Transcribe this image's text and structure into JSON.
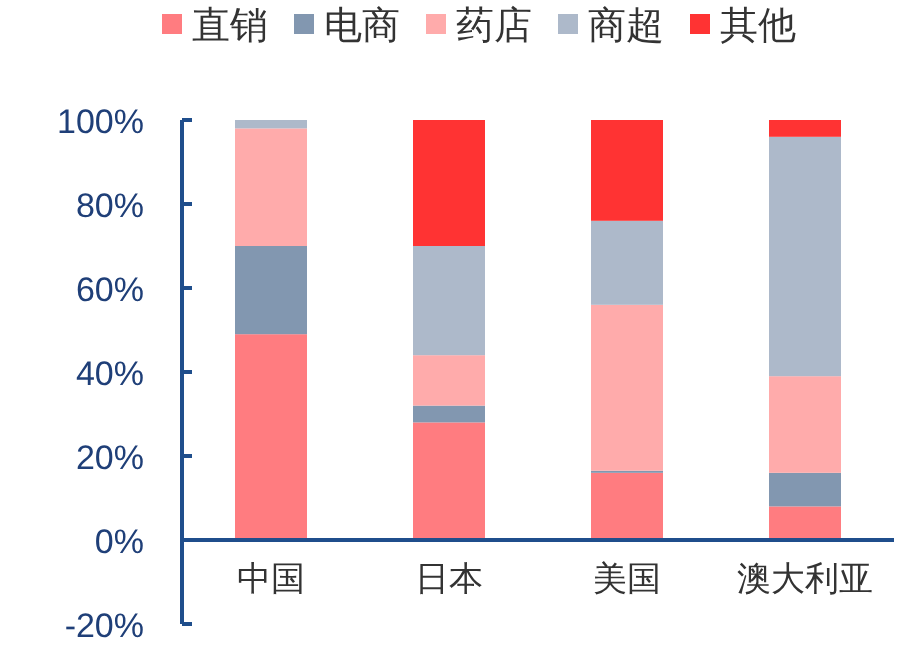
{
  "chart_data": {
    "type": "bar",
    "stacked": true,
    "legend": "top",
    "categories": [
      "中国",
      "日本",
      "美国",
      "澳大利亚"
    ],
    "series": [
      {
        "name": "直销",
        "color": "#ff7c80",
        "values": [
          49,
          28,
          16,
          8
        ]
      },
      {
        "name": "电商",
        "color": "#8297b0",
        "values": [
          21,
          4,
          0.5,
          8
        ]
      },
      {
        "name": "药店",
        "color": "#ffabab",
        "values": [
          28,
          12,
          39.5,
          23
        ]
      },
      {
        "name": "商超",
        "color": "#adb9ca",
        "values": [
          2,
          26,
          20,
          57
        ]
      },
      {
        "name": "其他",
        "color": "#ff3333",
        "values": [
          null,
          30,
          24,
          4
        ]
      }
    ],
    "ylim": [
      -20,
      100
    ],
    "yticks": [
      {
        "value": -20,
        "label": "-20%"
      },
      {
        "value": 0,
        "label": "0%"
      },
      {
        "value": 20,
        "label": "20%"
      },
      {
        "value": 40,
        "label": "40%"
      },
      {
        "value": 60,
        "label": "60%"
      },
      {
        "value": 80,
        "label": "80%"
      },
      {
        "value": 100,
        "label": "100%"
      }
    ]
  }
}
